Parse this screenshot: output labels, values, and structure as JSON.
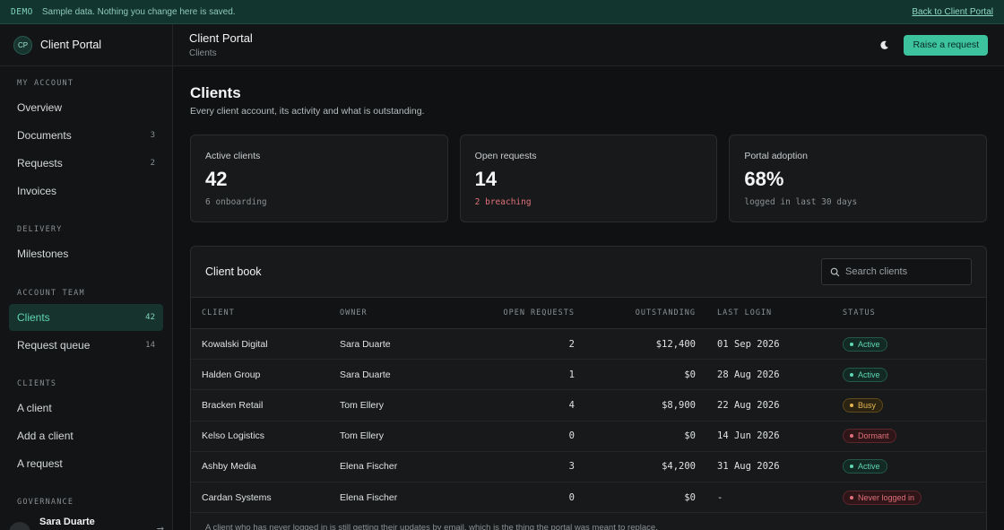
{
  "banner": {
    "tag": "DEMO",
    "message": "Sample data. Nothing you change here is saved.",
    "back_link": "Back to Client Portal"
  },
  "sidebar": {
    "logo_initials": "CP",
    "brand": "Client Portal",
    "sections": [
      {
        "label": "MY ACCOUNT",
        "items": [
          {
            "label": "Overview",
            "count": ""
          },
          {
            "label": "Documents",
            "count": "3"
          },
          {
            "label": "Requests",
            "count": "2"
          },
          {
            "label": "Invoices",
            "count": ""
          }
        ]
      },
      {
        "label": "DELIVERY",
        "items": [
          {
            "label": "Milestones",
            "count": ""
          }
        ]
      },
      {
        "label": "ACCOUNT TEAM",
        "items": [
          {
            "label": "Clients",
            "count": "42",
            "active": true
          },
          {
            "label": "Request queue",
            "count": "14"
          }
        ]
      },
      {
        "label": "CLIENTS",
        "items": [
          {
            "label": "A client",
            "count": ""
          },
          {
            "label": "Add a client",
            "count": ""
          },
          {
            "label": "A request",
            "count": ""
          }
        ]
      },
      {
        "label": "GOVERNANCE",
        "items": []
      }
    ],
    "user": {
      "initials": "SD",
      "name": "Sara Duarte"
    }
  },
  "topbar": {
    "title": "Client Portal",
    "breadcrumb": "Clients",
    "theme_icon": "moon-icon",
    "primary_button": "Raise a request"
  },
  "page": {
    "title": "Clients",
    "subtitle": "Every client account, its activity and what is outstanding."
  },
  "stats": [
    {
      "label": "Active clients",
      "value": "42",
      "note": "6 onboarding",
      "tone": "muted"
    },
    {
      "label": "Open requests",
      "value": "14",
      "note": "2 breaching",
      "tone": "warn"
    },
    {
      "label": "Portal adoption",
      "value": "68%",
      "note": "logged in last 30 days",
      "tone": "muted"
    }
  ],
  "client_book": {
    "title": "Client book",
    "search_placeholder": "Search clients",
    "columns": [
      "CLIENT",
      "OWNER",
      "OPEN REQUESTS",
      "OUTSTANDING",
      "LAST LOGIN",
      "STATUS"
    ],
    "rows": [
      {
        "client": "Kowalski Digital",
        "owner": "Sara Duarte",
        "open": "2",
        "outstanding": "$12,400",
        "last_login": "01 Sep 2026",
        "status": "Active",
        "kind": "active"
      },
      {
        "client": "Halden Group",
        "owner": "Sara Duarte",
        "open": "1",
        "outstanding": "$0",
        "last_login": "28 Aug 2026",
        "status": "Active",
        "kind": "active"
      },
      {
        "client": "Bracken Retail",
        "owner": "Tom Ellery",
        "open": "4",
        "outstanding": "$8,900",
        "last_login": "22 Aug 2026",
        "status": "Busy",
        "kind": "busy"
      },
      {
        "client": "Kelso Logistics",
        "owner": "Tom Ellery",
        "open": "0",
        "outstanding": "$0",
        "last_login": "14 Jun 2026",
        "status": "Dormant",
        "kind": "dormant"
      },
      {
        "client": "Ashby Media",
        "owner": "Elena Fischer",
        "open": "3",
        "outstanding": "$4,200",
        "last_login": "31 Aug 2026",
        "status": "Active",
        "kind": "active"
      },
      {
        "client": "Cardan Systems",
        "owner": "Elena Fischer",
        "open": "0",
        "outstanding": "$0",
        "last_login": "-",
        "status": "Never logged in",
        "kind": "never"
      }
    ],
    "footnote": "A client who has never logged in is still getting their updates by email, which is the thing the portal was meant to replace."
  },
  "colors": {
    "accent": "#3cc29d",
    "active_nav_bg": "#16342d",
    "warn": "#e0707a",
    "busy": "#e3b553"
  }
}
